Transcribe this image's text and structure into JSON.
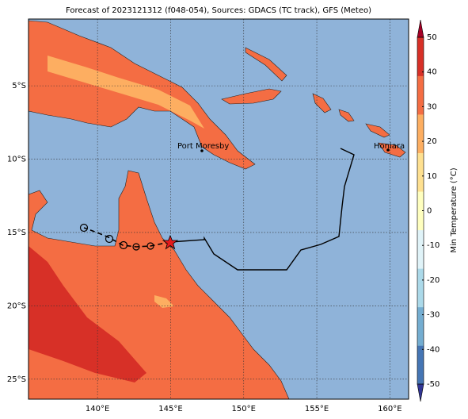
{
  "title": "Forecast of 2023121312 (f048-054), Sources: GDACS (TC track), GFS (Meteo)",
  "map": {
    "xlim": [
      135.28,
      161.28
    ],
    "ylim": [
      -26.36,
      -0.45
    ],
    "xticks": [
      {
        "value": 140,
        "label": "140°E"
      },
      {
        "value": 145,
        "label": "145°E"
      },
      {
        "value": 150,
        "label": "150°E"
      },
      {
        "value": 155,
        "label": "155°E"
      },
      {
        "value": 160,
        "label": "160°E"
      }
    ],
    "yticks": [
      {
        "value": -5,
        "label": "5°S"
      },
      {
        "value": -10,
        "label": "10°S"
      },
      {
        "value": -15,
        "label": "15°S"
      },
      {
        "value": -20,
        "label": "20°S"
      },
      {
        "value": -25,
        "label": "25°S"
      }
    ],
    "places": [
      {
        "label": "Port Moresby"
      },
      {
        "label": "Honiara"
      }
    ]
  },
  "colorbar": {
    "label": "Min Temperature (°C)",
    "lim": [
      -50,
      50
    ],
    "ticks": [
      50,
      40,
      30,
      20,
      10,
      0,
      -10,
      -20,
      -30,
      -40,
      -50
    ],
    "colors": [
      "#313695",
      "#4575b4",
      "#74add1",
      "#abd9e9",
      "#e0f3f8",
      "#ffffbf",
      "#fee090",
      "#fdae61",
      "#f46d43",
      "#d73027",
      "#a50026"
    ]
  }
}
